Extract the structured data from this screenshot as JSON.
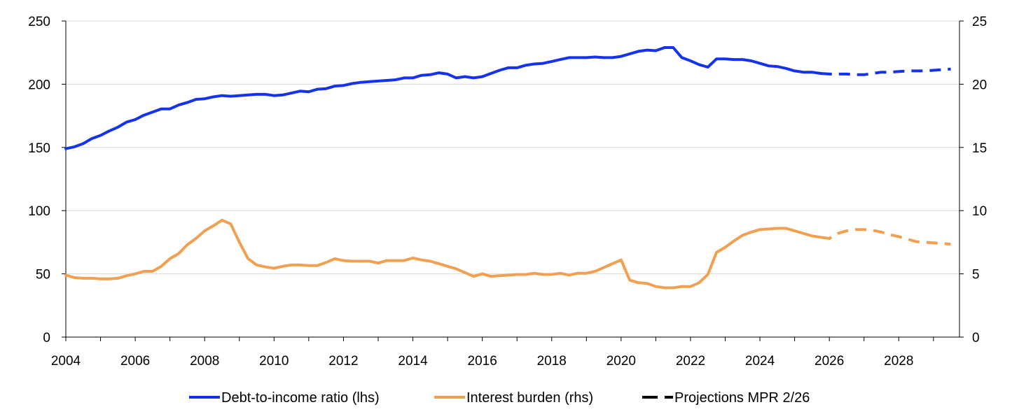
{
  "chart_data": {
    "type": "line",
    "title": "",
    "xlabel": "",
    "ylabel_left": "",
    "ylabel_right": "",
    "xlim": [
      2004,
      2029.75
    ],
    "ylim_left": [
      0,
      250
    ],
    "ylim_right": [
      0,
      25
    ],
    "x_ticks": [
      2004,
      2006,
      2008,
      2010,
      2012,
      2014,
      2016,
      2018,
      2020,
      2022,
      2024,
      2026,
      2028
    ],
    "x_tick_labels": [
      "2004",
      "2006",
      "2008",
      "2010",
      "2012",
      "2014",
      "2016",
      "2018",
      "2020",
      "2022",
      "2024",
      "2026",
      "2028"
    ],
    "y_ticks_left": [
      0,
      50,
      100,
      150,
      200,
      250
    ],
    "y_tick_labels_left": [
      "0",
      "50",
      "100",
      "150",
      "200",
      "250"
    ],
    "y_ticks_right": [
      0,
      5,
      10,
      15,
      20,
      25
    ],
    "y_tick_labels_right": [
      "0",
      "5",
      "10",
      "15",
      "20",
      "25"
    ],
    "grid": true,
    "legend_position": "bottom",
    "projection_start": 2025.75,
    "series": [
      {
        "name": "Debt-to-income ratio (lhs)",
        "axis": "left",
        "color": "#1432f0",
        "x": [
          2004,
          2004.25,
          2004.5,
          2004.75,
          2005,
          2005.25,
          2005.5,
          2005.75,
          2006,
          2006.25,
          2006.5,
          2006.75,
          2007,
          2007.25,
          2007.5,
          2007.75,
          2008,
          2008.25,
          2008.5,
          2008.75,
          2009,
          2009.25,
          2009.5,
          2009.75,
          2010,
          2010.25,
          2010.5,
          2010.75,
          2011,
          2011.25,
          2011.5,
          2011.75,
          2012,
          2012.25,
          2012.5,
          2012.75,
          2013,
          2013.25,
          2013.5,
          2013.75,
          2014,
          2014.25,
          2014.5,
          2014.75,
          2015,
          2015.25,
          2015.5,
          2015.75,
          2016,
          2016.25,
          2016.5,
          2016.75,
          2017,
          2017.25,
          2017.5,
          2017.75,
          2018,
          2018.25,
          2018.5,
          2018.75,
          2019,
          2019.25,
          2019.5,
          2019.75,
          2020,
          2020.25,
          2020.5,
          2020.75,
          2021,
          2021.25,
          2021.5,
          2021.75,
          2022,
          2022.25,
          2022.5,
          2022.75,
          2023,
          2023.25,
          2023.5,
          2023.75,
          2024,
          2024.25,
          2024.5,
          2024.75,
          2025,
          2025.25,
          2025.5,
          2025.75,
          2026,
          2026.25,
          2026.5,
          2026.75,
          2027,
          2027.25,
          2027.5,
          2027.75,
          2028,
          2028.25,
          2028.5,
          2028.75,
          2029,
          2029.25,
          2029.5
        ],
        "values": [
          149,
          150.5,
          153,
          157,
          159.5,
          163,
          166,
          170,
          172,
          175.5,
          178,
          180.5,
          180.5,
          183.5,
          185.5,
          188,
          188.5,
          190,
          191,
          190.5,
          191,
          191.5,
          192,
          192,
          191,
          191.5,
          193,
          194.5,
          194,
          196,
          196.5,
          198.5,
          199,
          200.5,
          201.5,
          202,
          202.5,
          203,
          203.5,
          205,
          205,
          207,
          207.5,
          209,
          208,
          205,
          206,
          205,
          206,
          208.5,
          211,
          213,
          213,
          215,
          216,
          216.5,
          218,
          219.5,
          221,
          221,
          221,
          221.5,
          221,
          221,
          222,
          224,
          226,
          227,
          226.5,
          229,
          229,
          221,
          218.5,
          215.5,
          213.5,
          220,
          220,
          219.5,
          219.5,
          218.5,
          216.5,
          214.5,
          214,
          212.5,
          210.5,
          209.5,
          209.5,
          208.5,
          208,
          208,
          208,
          207.5,
          207.5,
          208.5,
          209.5,
          209.5,
          210,
          210.5,
          210.5,
          210.5,
          211,
          211.5,
          212
        ]
      },
      {
        "name": "Interest burden (rhs)",
        "axis": "right",
        "color": "#f0a050",
        "x": [
          2004,
          2004.25,
          2004.5,
          2004.75,
          2005,
          2005.25,
          2005.5,
          2005.75,
          2006,
          2006.25,
          2006.5,
          2006.75,
          2007,
          2007.25,
          2007.5,
          2007.75,
          2008,
          2008.25,
          2008.5,
          2008.75,
          2009,
          2009.25,
          2009.5,
          2009.75,
          2010,
          2010.25,
          2010.5,
          2010.75,
          2011,
          2011.25,
          2011.5,
          2011.75,
          2012,
          2012.25,
          2012.5,
          2012.75,
          2013,
          2013.25,
          2013.5,
          2013.75,
          2014,
          2014.25,
          2014.5,
          2014.75,
          2015,
          2015.25,
          2015.5,
          2015.75,
          2016,
          2016.25,
          2016.5,
          2016.75,
          2017,
          2017.25,
          2017.5,
          2017.75,
          2018,
          2018.25,
          2018.5,
          2018.75,
          2019,
          2019.25,
          2019.5,
          2019.75,
          2020,
          2020.25,
          2020.5,
          2020.75,
          2021,
          2021.25,
          2021.5,
          2021.75,
          2022,
          2022.25,
          2022.5,
          2022.75,
          2023,
          2023.25,
          2023.5,
          2023.75,
          2024,
          2024.25,
          2024.5,
          2024.75,
          2025,
          2025.25,
          2025.5,
          2025.75,
          2026,
          2026.25,
          2026.5,
          2026.75,
          2027,
          2027.25,
          2027.5,
          2027.75,
          2028,
          2028.25,
          2028.5,
          2028.75,
          2029,
          2029.25,
          2029.5
        ],
        "values": [
          4.9,
          4.7,
          4.65,
          4.65,
          4.6,
          4.6,
          4.65,
          4.85,
          5.0,
          5.2,
          5.2,
          5.6,
          6.2,
          6.6,
          7.3,
          7.8,
          8.4,
          8.8,
          9.25,
          8.95,
          7.5,
          6.2,
          5.7,
          5.55,
          5.45,
          5.6,
          5.7,
          5.7,
          5.65,
          5.65,
          5.9,
          6.2,
          6.05,
          6.0,
          6.0,
          6.0,
          5.85,
          6.05,
          6.05,
          6.05,
          6.25,
          6.1,
          6.0,
          5.8,
          5.6,
          5.4,
          5.1,
          4.8,
          5.0,
          4.8,
          4.85,
          4.9,
          4.95,
          4.95,
          5.05,
          4.95,
          4.95,
          5.05,
          4.9,
          5.05,
          5.05,
          5.2,
          5.5,
          5.8,
          6.1,
          4.5,
          4.3,
          4.25,
          4.0,
          3.9,
          3.9,
          4.0,
          4.0,
          4.3,
          4.95,
          6.7,
          7.1,
          7.6,
          8.05,
          8.3,
          8.5,
          8.55,
          8.6,
          8.6,
          8.4,
          8.2,
          8.0,
          7.9,
          7.8,
          8.2,
          8.4,
          8.5,
          8.5,
          8.45,
          8.3,
          8.1,
          7.95,
          7.75,
          7.55,
          7.5,
          7.45,
          7.4,
          7.35
        ]
      }
    ],
    "legend": [
      {
        "label": "Debt-to-income ratio (lhs)",
        "color": "#1432f0",
        "style": "solid"
      },
      {
        "label": "Interest burden (rhs)",
        "color": "#f0a050",
        "style": "solid"
      },
      {
        "label": "Projections MPR 2/26",
        "color": "#000000",
        "style": "dashed"
      }
    ]
  }
}
